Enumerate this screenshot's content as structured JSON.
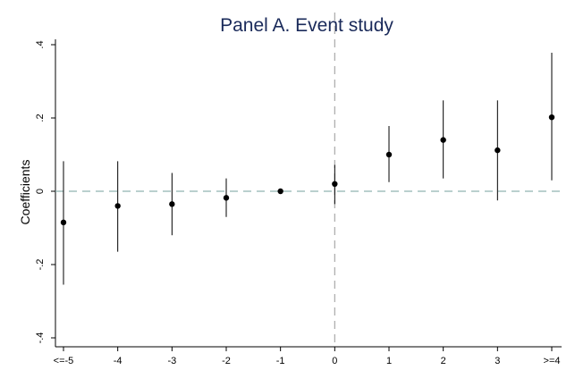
{
  "chart_data": {
    "type": "scatter",
    "title": "Panel A. Event study",
    "xlabel": "",
    "ylabel": "Coefficients",
    "categories": [
      "<=-5",
      "-4",
      "-3",
      "-2",
      "-1",
      "0",
      "1",
      "2",
      "3",
      ">=4"
    ],
    "series": [
      {
        "values": [
          -0.085,
          -0.04,
          -0.035,
          -0.018,
          0.0,
          0.02,
          0.1,
          0.14,
          0.112,
          0.202
        ],
        "ci_lower": [
          -0.255,
          -0.165,
          -0.12,
          -0.07,
          0.0,
          -0.035,
          0.025,
          0.035,
          -0.025,
          0.03
        ],
        "ci_upper": [
          0.082,
          0.082,
          0.05,
          0.035,
          0.0,
          0.072,
          0.178,
          0.248,
          0.248,
          0.378
        ]
      }
    ],
    "ylim": [
      -0.42,
      0.42
    ],
    "yticks": [
      {
        "value": -0.4,
        "label": "-.4"
      },
      {
        "value": -0.2,
        "label": "-.2"
      },
      {
        "value": 0,
        "label": "0"
      },
      {
        "value": 0.2,
        "label": ".2"
      },
      {
        "value": 0.4,
        "label": ".4"
      }
    ],
    "reference_lines": {
      "horizontal_value": 0,
      "vertical_category": "0"
    },
    "grid": false,
    "colors": {
      "points": "#000000",
      "whiskers": "#000000",
      "horizontal_ref": "#90b4b0",
      "vertical_ref": "#a9a9a9",
      "title": "#1a2a5a"
    }
  }
}
